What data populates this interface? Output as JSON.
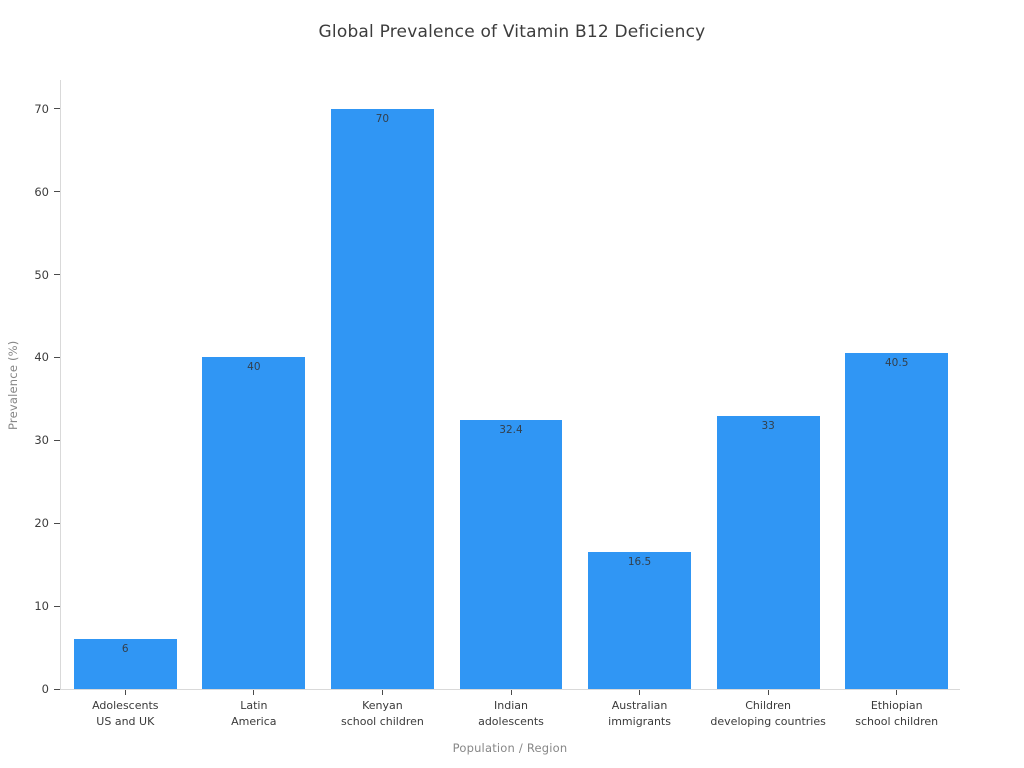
{
  "title": "Global Prevalence of Vitamin B12 Deficiency",
  "chart_data": {
    "type": "bar",
    "title": "Global Prevalence of Vitamin B12 Deficiency",
    "xlabel": "Population / Region",
    "ylabel": "Prevalence (%)",
    "categories": [
      "Adolescents\nUS and UK",
      "Latin\nAmerica",
      "Kenyan\nschool children",
      "Indian\nadolescents",
      "Australian\nimmigrants",
      "Children\ndeveloping countries",
      "Ethiopian\nschool children"
    ],
    "values": [
      6,
      40,
      70,
      32.4,
      16.5,
      33,
      40.5
    ],
    "value_labels": [
      "6",
      "40",
      "70",
      "32.4",
      "16.5",
      "33",
      "40.5"
    ],
    "yticks": [
      0,
      10,
      20,
      30,
      40,
      50,
      60,
      70
    ],
    "ylim": [
      0,
      73.6
    ],
    "grid": false,
    "legend": false,
    "bar_color": "#3096f4",
    "bar_label_color": "#333f4b",
    "axis_title_color": "#878787",
    "tick_label_color": "#3d3d3d",
    "spine_color": "#d9d9d9"
  }
}
